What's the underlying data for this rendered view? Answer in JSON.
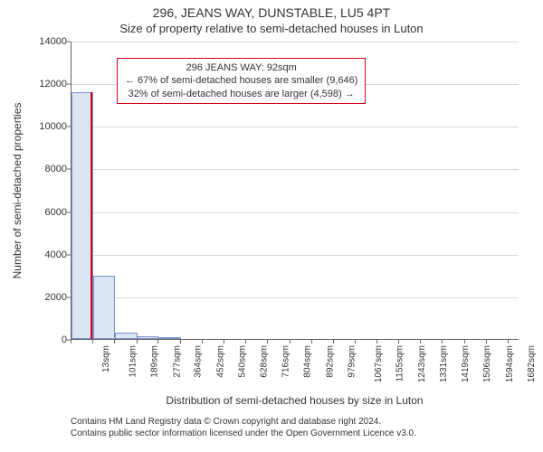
{
  "title_main": "296, JEANS WAY, DUNSTABLE, LU5 4PT",
  "title_sub": "Size of property relative to semi-detached houses in Luton",
  "y_axis_title": "Number of semi-detached properties",
  "x_axis_title": "Distribution of semi-detached houses by size in Luton",
  "attribution_line1": "Contains HM Land Registry data © Crown copyright and database right 2024.",
  "attribution_line2": "Contains public sector information licensed under the Open Government Licence v3.0.",
  "chart": {
    "type": "histogram",
    "background_color": "#ffffff",
    "grid_color": "#d9d9d9",
    "axis_color": "#666666",
    "bar_fill": "#dbe5f4",
    "bar_stroke": "#7a93c4",
    "marker_color": "#d0021b",
    "ylim": [
      0,
      14000
    ],
    "y_ticks": [
      0,
      2000,
      4000,
      6000,
      8000,
      10000,
      12000,
      14000
    ],
    "x_ticks": [
      13,
      101,
      189,
      277,
      364,
      452,
      540,
      628,
      716,
      804,
      892,
      979,
      1067,
      1155,
      1243,
      1331,
      1419,
      1506,
      1594,
      1682,
      1770
    ],
    "x_tick_unit": "sqm",
    "xlim": [
      13,
      1814
    ],
    "bin_edges": [
      13,
      101,
      189,
      277,
      364,
      452
    ],
    "bin_counts": [
      11600,
      2950,
      300,
      120,
      60
    ],
    "marker_x": 92,
    "axis_fontsize": 11,
    "tick_fontsize": 10,
    "title_fontsize": 14,
    "subtitle_fontsize": 13
  },
  "callout": {
    "border_color": "#d0021b",
    "title": "296 JEANS WAY: 92sqm",
    "line_smaller": "← 67% of semi-detached houses are smaller (9,646)",
    "line_larger": "32% of semi-detached houses are larger (4,598) →"
  }
}
